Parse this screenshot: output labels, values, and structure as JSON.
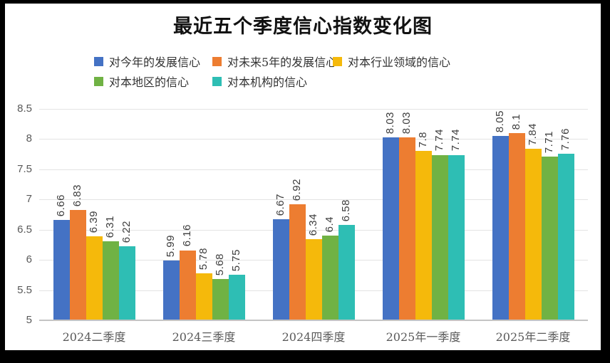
{
  "chart_data": {
    "type": "bar",
    "title": "最近五个季度信心指数变化图",
    "categories": [
      "2024二季度",
      "2024三季度",
      "2024四季度",
      "2025年一季度",
      "2025年二季度"
    ],
    "series": [
      {
        "name": "对今年的发展信心",
        "color": "#4472C4",
        "values": [
          6.66,
          5.99,
          6.67,
          8.03,
          8.05
        ]
      },
      {
        "name": "对未来5年的发展信心",
        "color": "#ED7D31",
        "values": [
          6.83,
          6.16,
          6.92,
          8.03,
          8.1
        ]
      },
      {
        "name": "对本行业领域的信心",
        "color": "#F5B90B",
        "values": [
          6.39,
          5.78,
          6.34,
          7.8,
          7.84
        ]
      },
      {
        "name": "对本地区的信心",
        "color": "#70B244",
        "values": [
          6.31,
          5.68,
          6.4,
          7.74,
          7.71
        ]
      },
      {
        "name": "对本机构的信心",
        "color": "#2EBEB4",
        "values": [
          6.22,
          5.75,
          6.58,
          7.74,
          7.76
        ]
      }
    ],
    "y_axis": {
      "min": 5,
      "max": 8.5,
      "step": 0.5,
      "tick_labels": [
        "8.5",
        "8",
        "7.5",
        "7",
        "6.5",
        "6",
        "5.5",
        "5"
      ]
    },
    "legend_position": "top",
    "grid": true,
    "data_labels_rotated": true,
    "colors": {
      "gridline": "#e3e3e3",
      "axis_line": "#c4c4c4",
      "axis_text": "#595959",
      "data_label_text": "#3d3d3d"
    }
  }
}
